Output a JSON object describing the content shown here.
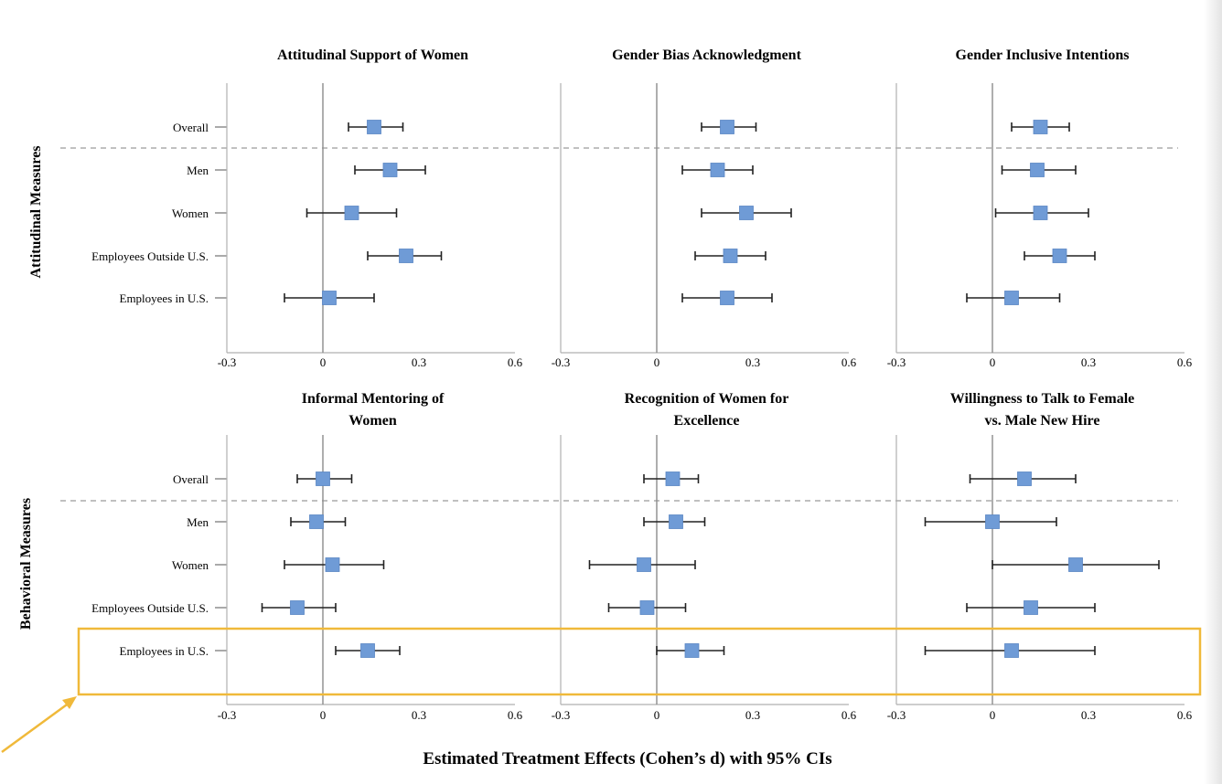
{
  "chart_data": {
    "type": "scatter",
    "subtype": "forest-plot",
    "xlabel": "Estimated Treatment Effects (Cohen’s d) with 95% CIs",
    "xticks": [
      "-0.3",
      "0",
      "0.3",
      "0.6"
    ],
    "xlim": [
      -0.3,
      0.6
    ],
    "rows": [
      "Overall",
      "Men",
      "Women",
      "Employees Outside U.S.",
      "Employees in U.S."
    ],
    "marker_color": "#6f9bd6",
    "highlight_color": "#f0b93a",
    "highlighted_row": "Employees in U.S.",
    "sections": [
      {
        "label": "Attitudinal Measures",
        "panels": [
          {
            "title": [
              "Attitudinal Support of Women"
            ],
            "estimates": [
              0.16,
              0.21,
              0.09,
              0.26,
              0.02
            ],
            "ci_low": [
              0.08,
              0.1,
              -0.05,
              0.14,
              -0.12
            ],
            "ci_high": [
              0.25,
              0.32,
              0.23,
              0.37,
              0.16
            ]
          },
          {
            "title": [
              "Gender Bias Acknowledgment"
            ],
            "estimates": [
              0.22,
              0.19,
              0.28,
              0.23,
              0.22
            ],
            "ci_low": [
              0.14,
              0.08,
              0.14,
              0.12,
              0.08
            ],
            "ci_high": [
              0.31,
              0.3,
              0.42,
              0.34,
              0.36
            ]
          },
          {
            "title": [
              "Gender Inclusive Intentions"
            ],
            "estimates": [
              0.15,
              0.14,
              0.15,
              0.21,
              0.06
            ],
            "ci_low": [
              0.06,
              0.03,
              0.01,
              0.1,
              -0.08
            ],
            "ci_high": [
              0.24,
              0.26,
              0.3,
              0.32,
              0.21
            ]
          }
        ]
      },
      {
        "label": "Behavioral Measures",
        "panels": [
          {
            "title": [
              "Informal Mentoring of",
              "Women"
            ],
            "estimates": [
              0.0,
              -0.02,
              0.03,
              -0.08,
              0.14
            ],
            "ci_low": [
              -0.08,
              -0.1,
              -0.12,
              -0.19,
              0.04
            ],
            "ci_high": [
              0.09,
              0.07,
              0.19,
              0.04,
              0.24
            ]
          },
          {
            "title": [
              "Recognition of Women for",
              "Excellence"
            ],
            "estimates": [
              0.05,
              0.06,
              -0.04,
              -0.03,
              0.11
            ],
            "ci_low": [
              -0.04,
              -0.04,
              -0.21,
              -0.15,
              0.0
            ],
            "ci_high": [
              0.13,
              0.15,
              0.12,
              0.09,
              0.21
            ]
          },
          {
            "title": [
              "Willingness to Talk to Female",
              "vs. Male New Hire"
            ],
            "estimates": [
              0.1,
              0.0,
              0.26,
              0.12,
              0.06
            ],
            "ci_low": [
              -0.07,
              -0.21,
              0.0,
              -0.08,
              -0.21
            ],
            "ci_high": [
              0.26,
              0.2,
              0.52,
              0.32,
              0.32
            ]
          }
        ]
      }
    ]
  }
}
